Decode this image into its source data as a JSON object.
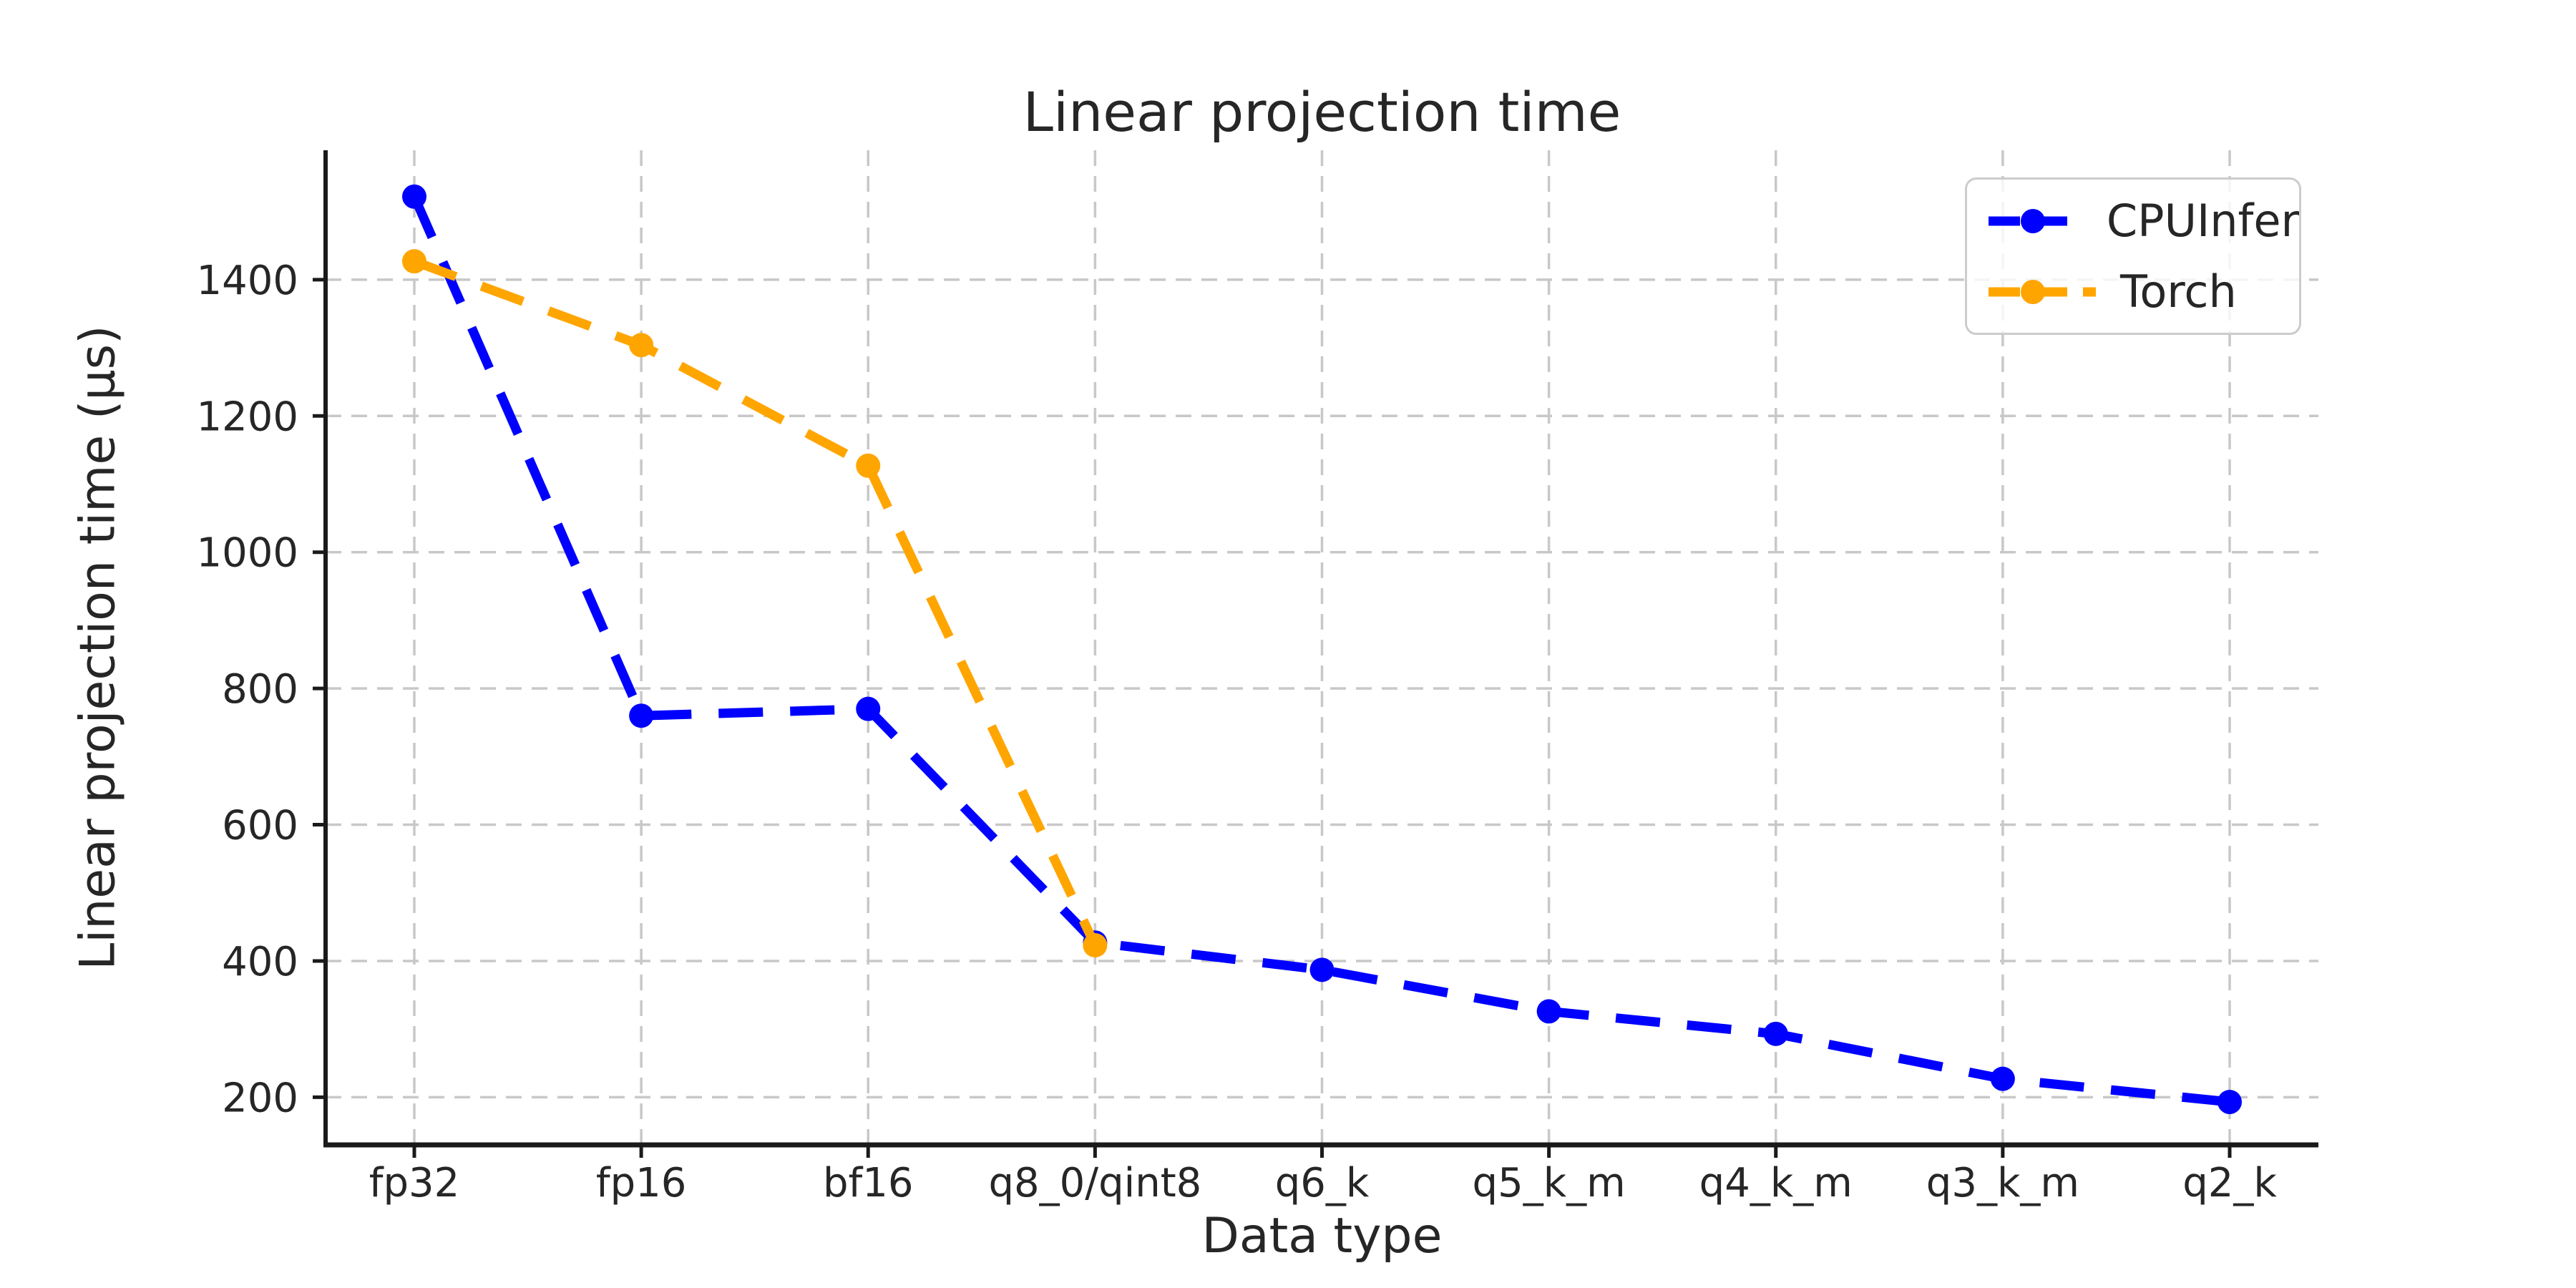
{
  "chart_data": {
    "type": "line",
    "title": "Linear projection time",
    "xlabel": "Data type",
    "ylabel": "Linear projection time (μs)",
    "categories": [
      "fp32",
      "fp16",
      "bf16",
      "q8_0/qint8",
      "q6_k",
      "q5_k_m",
      "q4_k_m",
      "q3_k_m",
      "q2_k"
    ],
    "yticks": [
      200,
      400,
      600,
      800,
      1000,
      1200,
      1400
    ],
    "ylim": [
      130,
      1590
    ],
    "grid": true,
    "grid_style": "dashed",
    "legend_position": "upper right",
    "background_color": "#ffffff",
    "grid_color": "#c8c8c8",
    "axis_color": "#1a1a1a",
    "text_color": "#262626",
    "series": [
      {
        "name": "CPUInfer",
        "color": "#0000ff",
        "marker": "circle",
        "linestyle": "dashed",
        "values": [
          1522,
          760,
          770,
          427,
          387,
          326,
          293,
          227,
          193
        ]
      },
      {
        "name": "Torch",
        "color": "#ffa500",
        "marker": "circle",
        "linestyle": "dashed",
        "values": [
          1427,
          1304,
          1127,
          423,
          null,
          null,
          null,
          null,
          null
        ]
      }
    ]
  }
}
